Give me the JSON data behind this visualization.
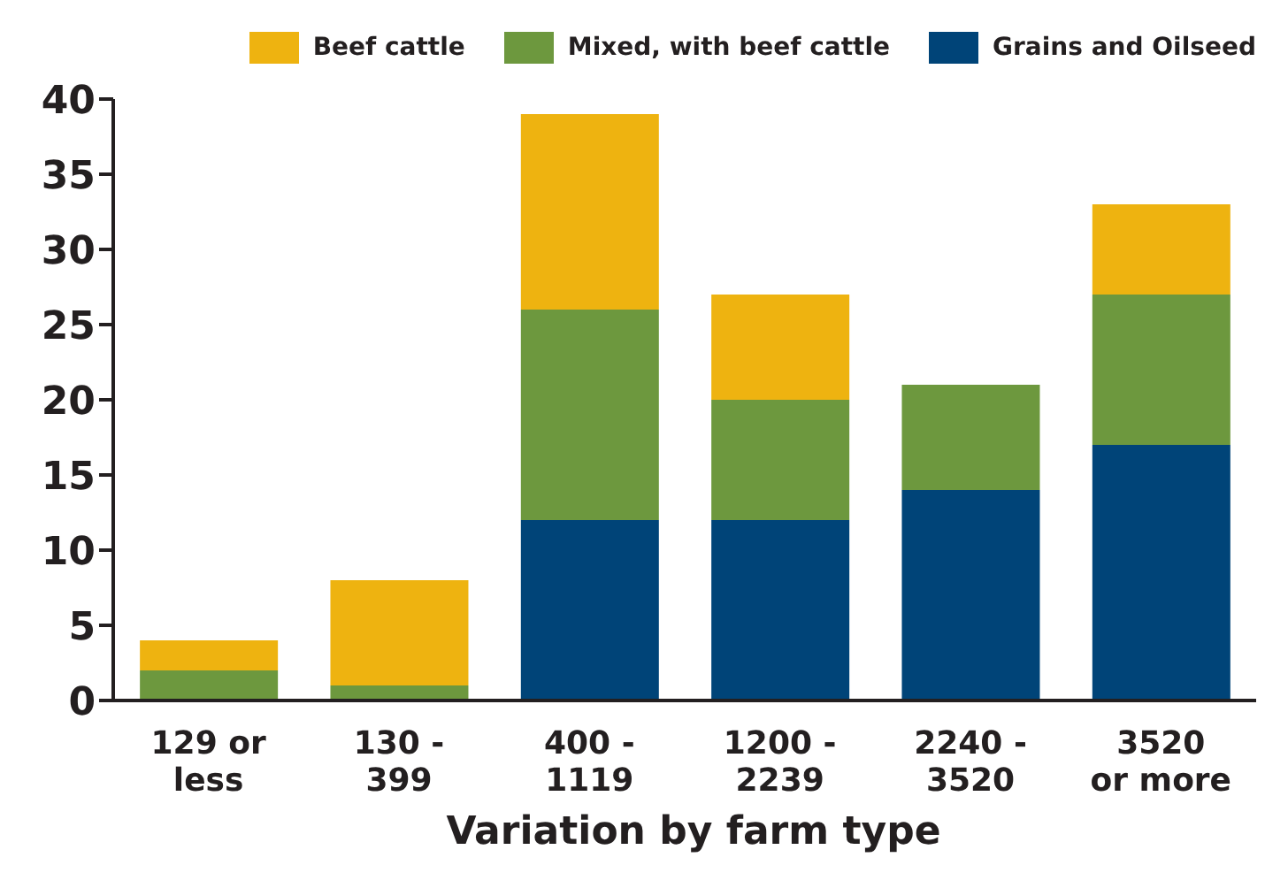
{
  "chart_data": {
    "type": "bar",
    "xlabel": "Variation by farm type",
    "categories": [
      "129 or\nless",
      "130 -\n399",
      "400 -\n1119",
      "1200 -\n2239",
      "2240 -\n3520",
      "3520\nor more"
    ],
    "series": [
      {
        "name": "Grains and Oilseed",
        "color": "#004478",
        "values": [
          0,
          0,
          12,
          12,
          14,
          17
        ]
      },
      {
        "name": "Mixed, with beef cattle",
        "color": "#6d983e",
        "values": [
          2,
          1,
          14,
          8,
          7,
          10
        ]
      },
      {
        "name": "Beef cattle",
        "color": "#eeb310",
        "values": [
          2,
          7,
          13,
          7,
          0,
          6
        ]
      }
    ],
    "stacked": true,
    "ylim": [
      0,
      40
    ],
    "yticks": [
      0,
      5,
      10,
      15,
      20,
      25,
      30,
      35,
      40
    ],
    "legend": "top right"
  }
}
